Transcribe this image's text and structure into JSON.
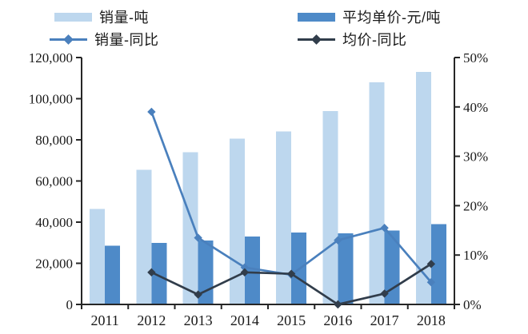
{
  "page": {
    "background": "#ffffff"
  },
  "colors": {
    "volume_bar": "#bdd7ee",
    "price_bar": "#4e8ac8",
    "volume_line": "#4a80bd",
    "price_line": "#313d4b",
    "axis": "#262626",
    "text": "#1a1a1a"
  },
  "chart_data": {
    "type": "combo-bar-line",
    "title": "",
    "categories": [
      "2011",
      "2012",
      "2013",
      "2014",
      "2015",
      "2016",
      "2017",
      "2018"
    ],
    "series": [
      {
        "name": "销量-吨",
        "type": "bar",
        "axis": "left",
        "color": "#bdd7ee",
        "values": [
          46500,
          65500,
          74000,
          80500,
          84000,
          94000,
          108000,
          113000
        ]
      },
      {
        "name": "平均单价-元/吨",
        "type": "bar",
        "axis": "left",
        "color": "#4e8ac8",
        "values": [
          28500,
          30000,
          31000,
          33000,
          35000,
          34500,
          36000,
          39000
        ]
      },
      {
        "name": "销量-同比",
        "type": "line",
        "axis": "right",
        "marker": "diamond",
        "color": "#4a80bd",
        "values": [
          null,
          39,
          13.5,
          7.5,
          6,
          13,
          15.5,
          4.5
        ]
      },
      {
        "name": "均价-同比",
        "type": "line",
        "axis": "right",
        "marker": "diamond",
        "color": "#313d4b",
        "values": [
          null,
          6.5,
          2,
          6.5,
          6.2,
          0,
          2.2,
          8.2
        ]
      }
    ],
    "left_axis": {
      "min": 0,
      "max": 120000,
      "step": 20000,
      "tick_labels": [
        "0",
        "20,000",
        "40,000",
        "60,000",
        "80,000",
        "100,000",
        "120,000"
      ]
    },
    "right_axis": {
      "min": 0,
      "max": 50,
      "step": 10,
      "tick_labels": [
        "0%",
        "10%",
        "20%",
        "30%",
        "40%",
        "50%"
      ]
    },
    "grid": false,
    "legend_position": "top"
  }
}
